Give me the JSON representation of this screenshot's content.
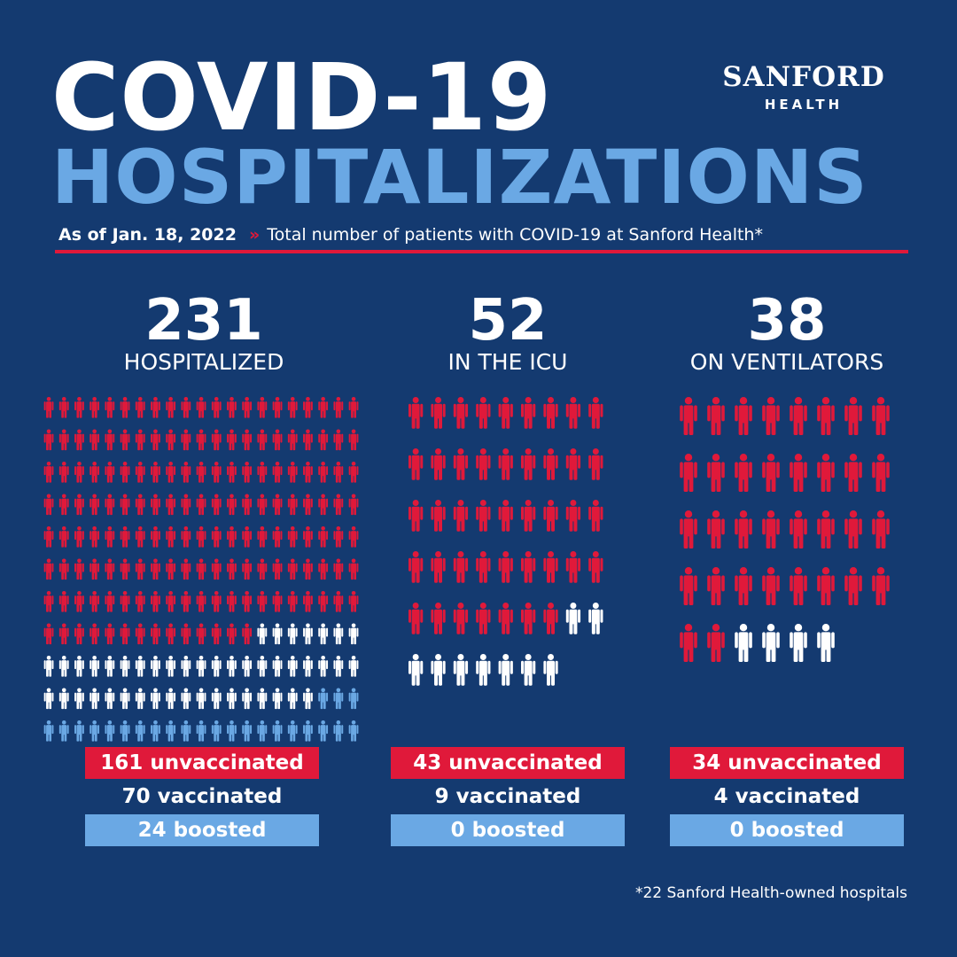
{
  "header": {
    "title_line1": "COVID-19",
    "title_line2": "HOSPITALIZATIONS",
    "date": "As of Jan. 18, 2022",
    "separator": "»",
    "description": "Total number of patients with COVID-19 at Sanford Health*"
  },
  "logo": {
    "name": "SANFORD",
    "sub": "HEALTH"
  },
  "colors": {
    "background": "#143a70",
    "unvaccinated": "#e0193a",
    "vaccinated": "#ffffff",
    "boosted": "#6aa8e4"
  },
  "panels": [
    {
      "value": "231",
      "label": "HOSPITALIZED",
      "total": 231,
      "unvaccinated": 161,
      "vaccinated": 70,
      "boosted": 24,
      "unvaccinated_label": "161 unvaccinated",
      "vaccinated_label": "70 vaccinated",
      "boosted_label": "24 boosted"
    },
    {
      "value": "52",
      "label": "IN THE ICU",
      "total": 52,
      "unvaccinated": 43,
      "vaccinated": 9,
      "boosted": 0,
      "unvaccinated_label": "43 unvaccinated",
      "vaccinated_label": "9 vaccinated",
      "boosted_label": "0 boosted"
    },
    {
      "value": "38",
      "label": "ON VENTILATORS",
      "total": 38,
      "unvaccinated": 34,
      "vaccinated": 4,
      "boosted": 0,
      "unvaccinated_label": "34 unvaccinated",
      "vaccinated_label": "4 vaccinated",
      "boosted_label": "0 boosted"
    }
  ],
  "footnote": "*22 Sanford Health-owned hospitals"
}
